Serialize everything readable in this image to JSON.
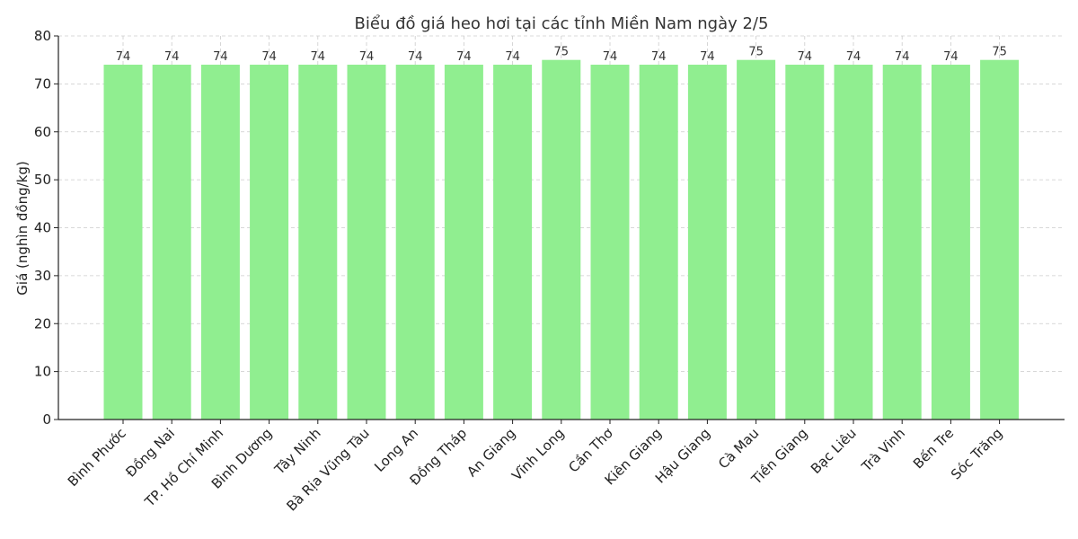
{
  "chart_data": {
    "type": "bar",
    "title": "Biểu đồ giá heo hơi tại các tỉnh Miền Nam ngày 2/5",
    "xlabel": "",
    "ylabel": "Giá (nghìn đồng/kg)",
    "ylim": [
      0,
      80
    ],
    "yticks": [
      0,
      10,
      20,
      30,
      40,
      50,
      60,
      70,
      80
    ],
    "grid": true,
    "bar_color": "#90ee90",
    "categories": [
      "Bình Phước",
      "Đồng Nai",
      "TP. Hồ Chí Minh",
      "Bình Dương",
      "Tây Ninh",
      "Bà Rịa  Vũng Tàu",
      "Long An",
      "Đồng Tháp",
      "An Giang",
      "Vĩnh Long",
      "Cần Thơ",
      "Kiên Giang",
      "Hậu Giang",
      "Cà Mau",
      "Tiền Giang",
      "Bạc Liêu",
      "Trà Vinh",
      "Bến Tre",
      "Sóc Trăng"
    ],
    "values": [
      74,
      74,
      74,
      74,
      74,
      74,
      74,
      74,
      74,
      75,
      74,
      74,
      74,
      75,
      74,
      74,
      74,
      74,
      75
    ]
  }
}
